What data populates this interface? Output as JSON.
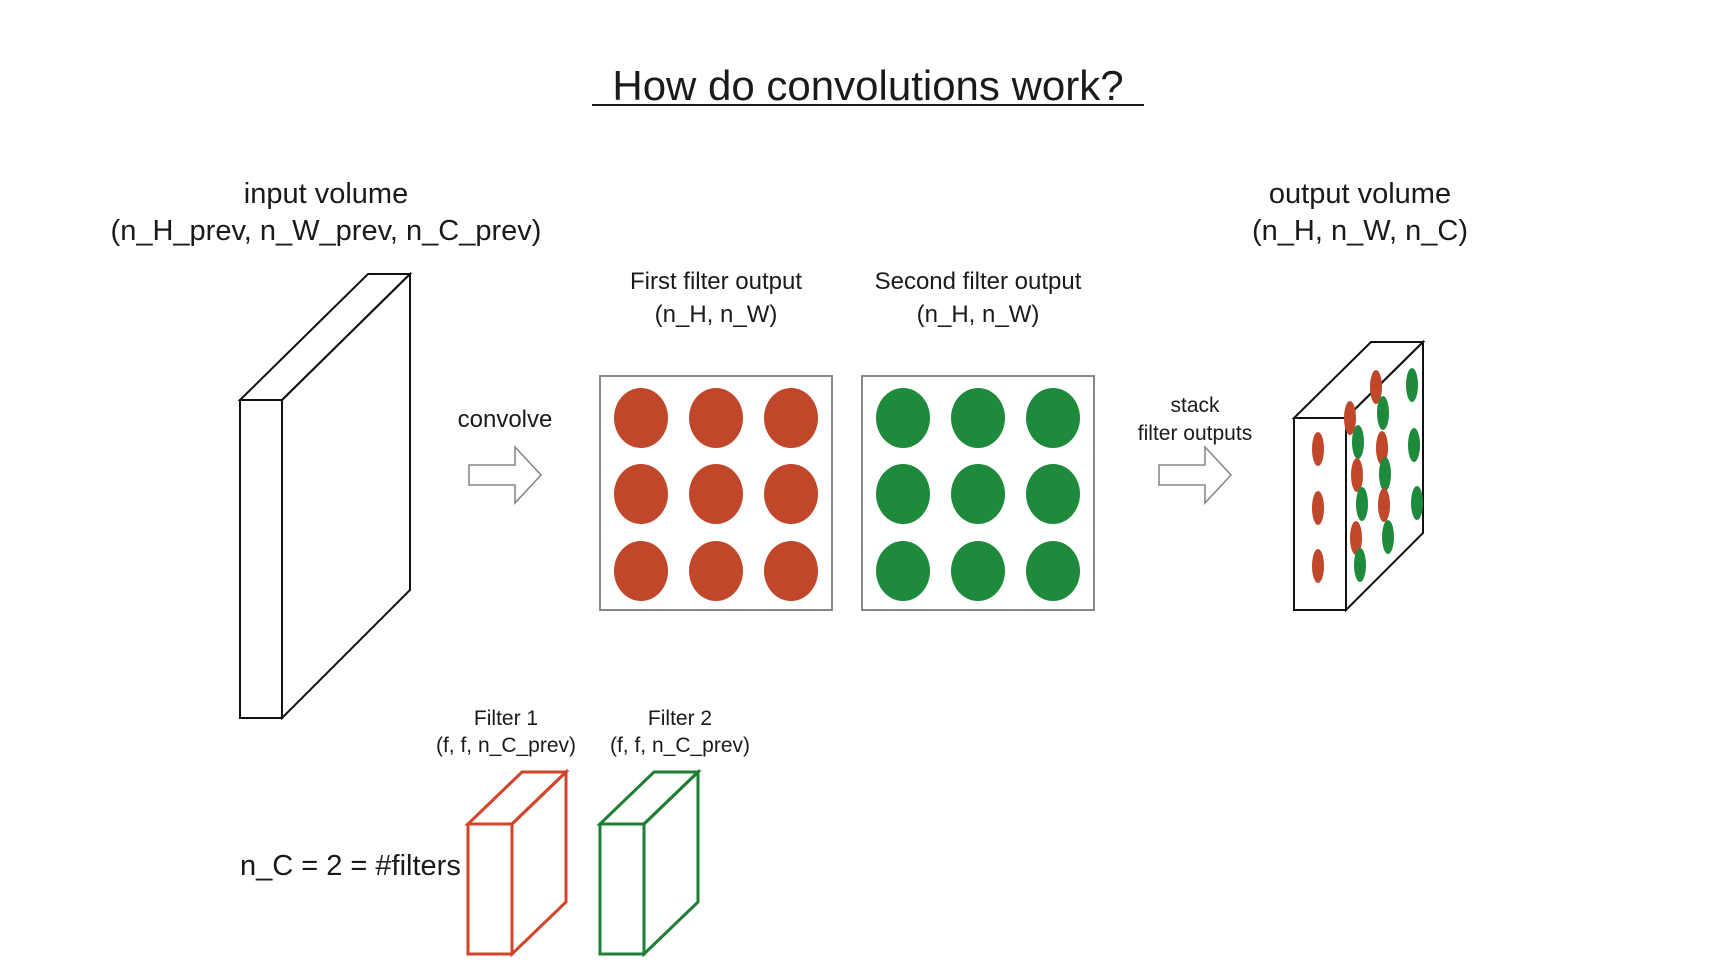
{
  "title": "How do convolutions work?",
  "input_volume": {
    "label": "input volume",
    "shape": "(n_H_prev, n_W_prev, n_C_prev)"
  },
  "convolve": {
    "label": "convolve"
  },
  "first_filter_output": {
    "label": "First filter output",
    "shape": "(n_H, n_W)",
    "dot_color": "#c1472b"
  },
  "second_filter_output": {
    "label": "Second filter output",
    "shape": "(n_H, n_W)",
    "dot_color": "#1e8a3c"
  },
  "stack": {
    "line1": "stack",
    "line2": "filter outputs"
  },
  "output_volume": {
    "label": "output volume",
    "shape": "(n_H, n_W, n_C)"
  },
  "filters": [
    {
      "label": "Filter 1",
      "shape": "(f, f, n_C_prev)",
      "color": "#d2452a"
    },
    {
      "label": "Filter 2",
      "shape": "(f, f, n_C_prev)",
      "color": "#1e7e34"
    }
  ],
  "n_c_note": "n_C = 2 = #filters",
  "colors": {
    "red": "#c1472b",
    "green": "#1e8a3c",
    "frame": "#888888",
    "stroke": "#111111"
  }
}
